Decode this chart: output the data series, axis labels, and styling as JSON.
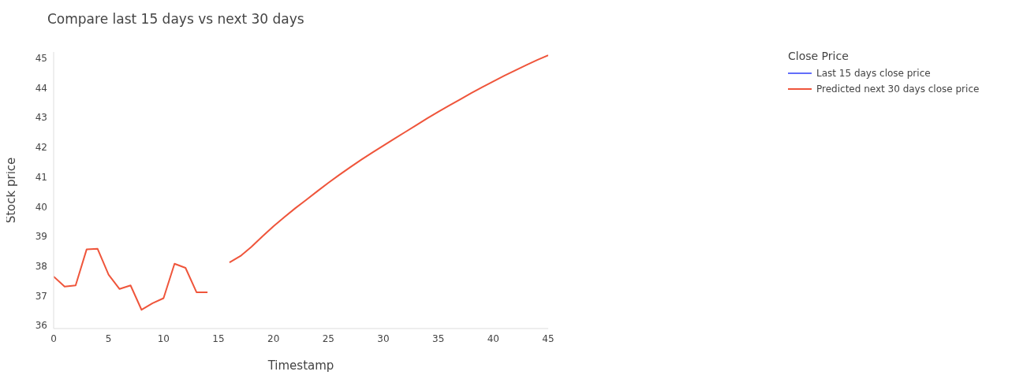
{
  "chart_data": {
    "type": "line",
    "title": "Compare last 15 days vs next 30 days",
    "xlabel": "Timestamp",
    "ylabel": "Stock price",
    "legend_title": "Close Price",
    "legend": "top right",
    "grid": false,
    "marker": "none",
    "line_style": "solid",
    "x": [
      0,
      1,
      2,
      3,
      4,
      5,
      6,
      7,
      8,
      9,
      10,
      11,
      12,
      13,
      14,
      15,
      16,
      17,
      18,
      19,
      20,
      21,
      22,
      23,
      24,
      25,
      26,
      27,
      28,
      29,
      30,
      31,
      32,
      33,
      34,
      35,
      36,
      37,
      38,
      39,
      40,
      41,
      42,
      43,
      44,
      45
    ],
    "series": [
      {
        "name": "Last 15 days close price",
        "color": "#636efa",
        "values": [
          null,
          null,
          null,
          null,
          null,
          null,
          null,
          null,
          null,
          null,
          null,
          null,
          null,
          null,
          null,
          null,
          null,
          null,
          null,
          null,
          null,
          null,
          null,
          null,
          null,
          null,
          null,
          null,
          null,
          null,
          null,
          null,
          null,
          null,
          null,
          null,
          null,
          null,
          null,
          null,
          null,
          null,
          null,
          null,
          null,
          null
        ]
      },
      {
        "name": "Predicted next 30 days close price",
        "color": "#ef553b",
        "values": [
          37.65,
          37.31,
          37.35,
          38.56,
          38.58,
          37.71,
          37.23,
          37.35,
          36.53,
          36.75,
          36.92,
          38.08,
          37.94,
          37.12,
          37.12,
          null,
          38.12,
          38.34,
          38.65,
          39.0,
          39.34,
          39.65,
          39.95,
          40.23,
          40.52,
          40.8,
          41.07,
          41.33,
          41.58,
          41.82,
          42.05,
          42.28,
          42.51,
          42.74,
          42.97,
          43.19,
          43.4,
          43.61,
          43.82,
          44.02,
          44.21,
          44.4,
          44.58,
          44.76,
          44.93,
          45.09
        ]
      }
    ],
    "xlim": [
      0,
      45
    ],
    "xticks": [
      0,
      5,
      10,
      15,
      20,
      25,
      30,
      35,
      40,
      45
    ],
    "ylim": [
      35.9,
      45.2
    ],
    "yticks": [
      36,
      37,
      38,
      39,
      40,
      41,
      42,
      43,
      44,
      45
    ]
  }
}
